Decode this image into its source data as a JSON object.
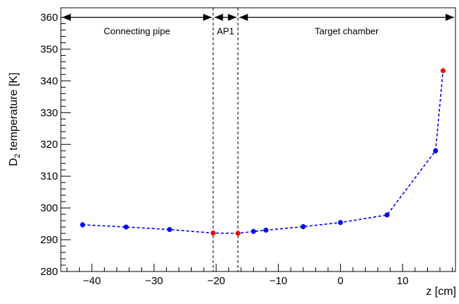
{
  "chart_data": {
    "type": "scatter",
    "xlabel": "z [cm]",
    "ylabel": {
      "prefix": "D",
      "subscript": "2",
      "suffix": " temperature [K]"
    },
    "xlim": [
      -45,
      18.5
    ],
    "ylim": [
      280,
      363
    ],
    "xticks": [
      -40,
      -30,
      -20,
      -10,
      0,
      10
    ],
    "xtick_labels": [
      "−40",
      "−30",
      "−20",
      "−10",
      "0",
      "10"
    ],
    "yticks": [
      280,
      290,
      300,
      310,
      320,
      330,
      340,
      350,
      360
    ],
    "ytick_labels": [
      "280",
      "290",
      "300",
      "310",
      "320",
      "330",
      "340",
      "350",
      "360"
    ],
    "grid": false,
    "series": [
      {
        "color": "#0000ff",
        "marker": "circle",
        "line": "dashed",
        "points": [
          {
            "x": -41.5,
            "y": 294.7,
            "err": 0.9
          },
          {
            "x": -34.5,
            "y": 294.0,
            "err": 0.7
          },
          {
            "x": -27.5,
            "y": 293.2,
            "err": 0.7
          },
          {
            "x": -20.5,
            "y": 292.1,
            "err": 0.0,
            "color": "#ff0000"
          },
          {
            "x": -16.5,
            "y": 292.0,
            "err": 0.0,
            "color": "#ff0000"
          },
          {
            "x": -14.0,
            "y": 292.6,
            "err": 0.8
          },
          {
            "x": -12.0,
            "y": 293.0,
            "err": 0.8
          },
          {
            "x": -6.0,
            "y": 294.1,
            "err": 0.8
          },
          {
            "x": 0.0,
            "y": 295.4,
            "err": 0.8
          },
          {
            "x": 7.5,
            "y": 297.8,
            "err": 0.8
          },
          {
            "x": 15.3,
            "y": 318.0,
            "err": 0.9
          },
          {
            "x": 16.5,
            "y": 343.2,
            "err": 0.0,
            "color": "#ff0000"
          }
        ]
      }
    ],
    "vlines": [
      -20.5,
      -16.5
    ],
    "regions": [
      {
        "label": "Connecting pipe",
        "from": -45,
        "to": -20.5
      },
      {
        "label": "AP1",
        "from": -20.5,
        "to": -16.5
      },
      {
        "label": "Target chamber",
        "from": -16.5,
        "to": 18.5
      }
    ],
    "region_arrow_y": 360
  }
}
